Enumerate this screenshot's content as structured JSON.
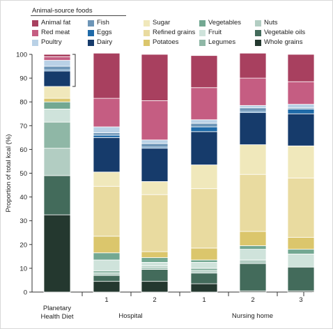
{
  "legend": {
    "title": "Animal-source foods",
    "columns": [
      [
        "Animal fat",
        "Red meat",
        "Poultry"
      ],
      [
        "Fish",
        "Eggs",
        "Dairy"
      ],
      [
        "Sugar",
        "Refined grains",
        "Potatoes"
      ],
      [
        "Vegetables",
        "Fruit",
        "Legumes"
      ],
      [
        "Nuts",
        "Vegetable oils",
        "Whole grains"
      ]
    ]
  },
  "colors": {
    "Animal fat": "#a8405f",
    "Red meat": "#c55d82",
    "Poultry": "#b9d1e6",
    "Fish": "#6d95b7",
    "Eggs": "#1f6aa8",
    "Dairy": "#163b6b",
    "Sugar": "#f0e8bb",
    "Refined grains": "#e9dba0",
    "Potatoes": "#dbc66c",
    "Vegetables": "#73a892",
    "Fruit": "#cfe3db",
    "Legumes": "#8fb7a6",
    "Nuts": "#b2cdc2",
    "Vegetable oils": "#436b5b",
    "Whole grains": "#24382f"
  },
  "chart_data": {
    "type": "bar",
    "stacked": true,
    "ylabel": "Proportion of total kcal (%)",
    "ylim": [
      0,
      100
    ],
    "yticks": [
      0,
      10,
      20,
      30,
      40,
      50,
      60,
      70,
      80,
      90,
      100
    ],
    "categories": [
      "Planetary Health Diet",
      "1",
      "2",
      "1",
      "2",
      "3"
    ],
    "groups": [
      {
        "label": "Hospital",
        "categories": [
          "1",
          "2"
        ]
      },
      {
        "label": "Nursing home",
        "categories": [
          "1",
          "2",
          "3"
        ]
      }
    ],
    "bracket_range": [
      86.5,
      100
    ],
    "series": [
      {
        "name": "Whole grains",
        "values": [
          32.5,
          4.5,
          4.5,
          3.5,
          0.5,
          0.5
        ]
      },
      {
        "name": "Vegetable oils",
        "values": [
          16.5,
          2.5,
          5.0,
          4.5,
          11.5,
          10.0
        ]
      },
      {
        "name": "Nuts",
        "values": [
          11.5,
          1.0,
          1.0,
          1.0,
          1.5,
          0.0
        ]
      },
      {
        "name": "Legumes",
        "values": [
          11.0,
          1.0,
          0.5,
          1.0,
          0.0,
          0.0
        ]
      },
      {
        "name": "Fruit",
        "values": [
          5.5,
          4.5,
          1.5,
          2.5,
          4.5,
          5.5
        ]
      },
      {
        "name": "Vegetables",
        "values": [
          3.0,
          3.0,
          2.0,
          1.0,
          1.5,
          2.0
        ]
      },
      {
        "name": "Potatoes",
        "values": [
          1.5,
          7.0,
          2.5,
          5.0,
          6.0,
          5.0
        ]
      },
      {
        "name": "Refined grains",
        "values": [
          0.0,
          21.0,
          24.0,
          25.0,
          24.0,
          25.0
        ]
      },
      {
        "name": "Sugar",
        "values": [
          5.0,
          6.0,
          5.5,
          10.0,
          12.5,
          13.5
        ]
      },
      {
        "name": "Dairy",
        "values": [
          6.5,
          14.5,
          14.0,
          14.0,
          13.5,
          13.5
        ]
      },
      {
        "name": "Eggs",
        "values": [
          0.5,
          1.0,
          0.5,
          2.0,
          0.5,
          2.0
        ]
      },
      {
        "name": "Fish",
        "values": [
          1.5,
          1.0,
          1.5,
          1.5,
          1.5,
          0.5
        ]
      },
      {
        "name": "Poultry",
        "values": [
          2.5,
          2.5,
          1.5,
          1.5,
          1.0,
          1.5
        ]
      },
      {
        "name": "Red meat",
        "values": [
          1.5,
          12.0,
          16.5,
          13.5,
          11.5,
          9.5
        ]
      },
      {
        "name": "Animal fat",
        "values": [
          1.0,
          19.0,
          19.5,
          13.5,
          10.5,
          11.5
        ]
      }
    ]
  }
}
